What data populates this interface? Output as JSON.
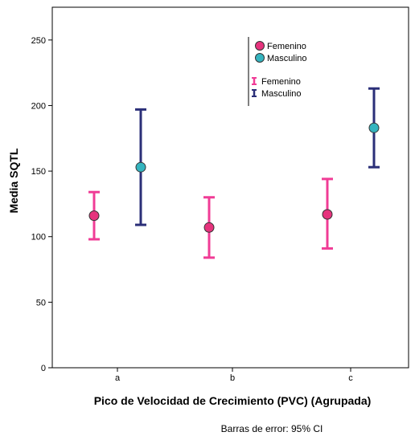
{
  "chart_data": {
    "type": "scatter",
    "subtype": "error-bar",
    "title": "",
    "xlabel": "Pico de Velocidad de Crecimiento (PVC) (Agrupada)",
    "ylabel": "Media SQTL",
    "footnote": "Barras de error: 95% CI",
    "categories": [
      "a",
      "b",
      "c"
    ],
    "ylim": [
      0,
      275
    ],
    "yticks": [
      0,
      50,
      100,
      150,
      200,
      250
    ],
    "grid": false,
    "legend_position": "top-right",
    "legend": {
      "markers": [
        {
          "name": "Femenino",
          "color": "#e6337d"
        },
        {
          "name": "Masculino",
          "color": "#34b4bf"
        }
      ],
      "error_bars": [
        {
          "name": "Femenino",
          "color": "#f03c96"
        },
        {
          "name": "Masculino",
          "color": "#2b2f78"
        }
      ]
    },
    "series": [
      {
        "name": "Femenino",
        "marker_color": "#e6337d",
        "bar_color": "#f03c96",
        "points": [
          {
            "category": "a",
            "mean": 116,
            "low": 98,
            "high": 134
          },
          {
            "category": "b",
            "mean": 107,
            "low": 84,
            "high": 130
          },
          {
            "category": "c",
            "mean": 117,
            "low": 91,
            "high": 144
          }
        ]
      },
      {
        "name": "Masculino",
        "marker_color": "#34b4bf",
        "bar_color": "#2b2f78",
        "points": [
          {
            "category": "a",
            "mean": 153,
            "low": 109,
            "high": 197
          },
          {
            "category": "c",
            "mean": 183,
            "low": 153,
            "high": 213
          }
        ]
      }
    ]
  }
}
